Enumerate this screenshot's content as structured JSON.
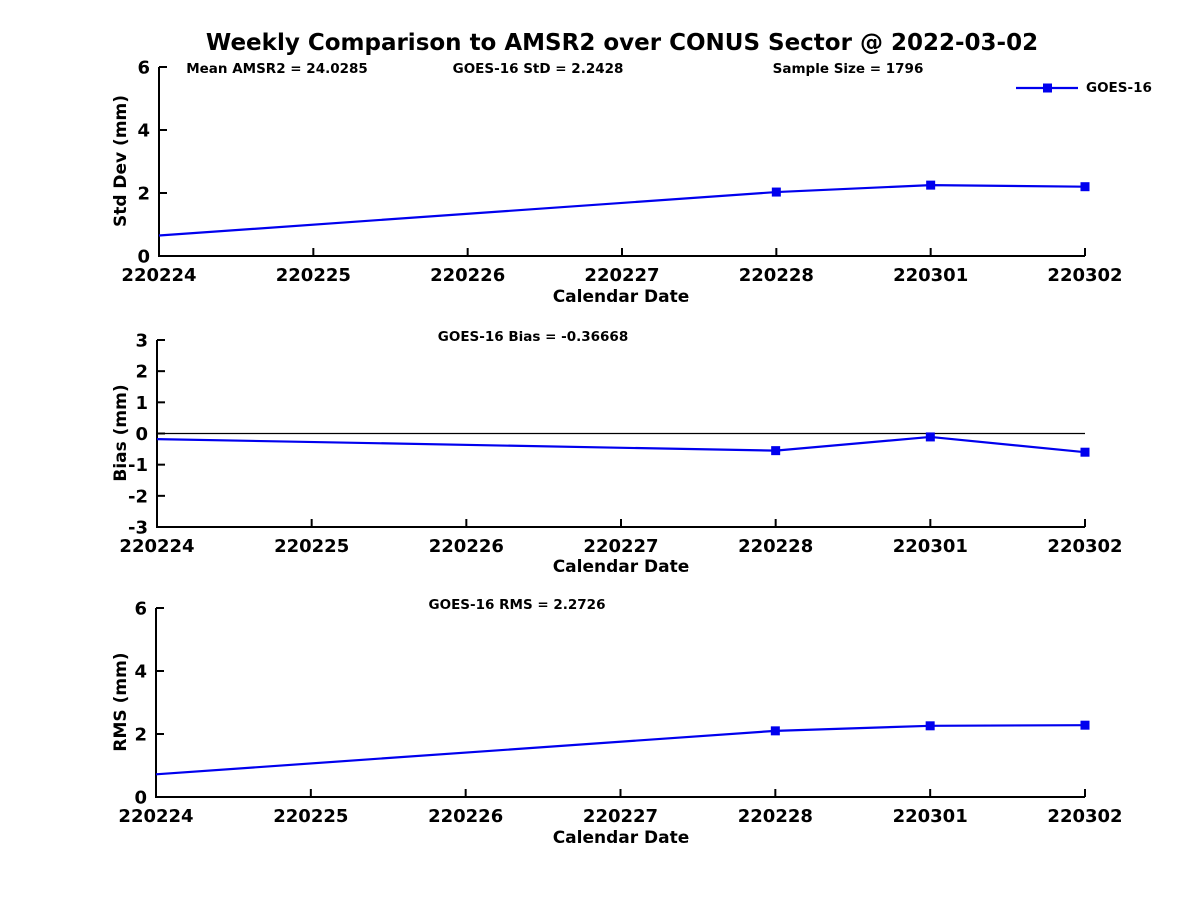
{
  "main_title": "Weekly Comparison to AMSR2 over CONUS Sector @ 2022-03-02",
  "annotations": {
    "mean_amsr2": "Mean AMSR2 = 24.0285",
    "goes16_std": "GOES-16 StD = 2.2428",
    "sample_size": "Sample Size = 1796"
  },
  "legend": {
    "label": "GOES-16",
    "color": "#0000EE",
    "marker": "square",
    "position": "top-right"
  },
  "colors": {
    "series_blue": "#0000EE",
    "axis_black": "#000000",
    "background": "#FFFFFF"
  },
  "chart_data": [
    {
      "type": "line",
      "title": "",
      "xlabel": "Calendar Date",
      "ylabel": "Std Dev (mm)",
      "categories": [
        "220224",
        "220225",
        "220226",
        "220227",
        "220228",
        "220301",
        "220302"
      ],
      "ylim": [
        0,
        6
      ],
      "yticks": [
        0,
        2,
        4,
        6
      ],
      "grid": false,
      "zero_line": false,
      "series": [
        {
          "name": "GOES-16",
          "color": "#0000EE",
          "values": [
            0.65,
            null,
            null,
            null,
            2.03,
            2.25,
            2.2
          ],
          "marker_indices": [
            4,
            5,
            6
          ]
        }
      ]
    },
    {
      "type": "line",
      "title": "GOES-16 Bias  = -0.36668",
      "xlabel": "Calendar Date",
      "ylabel": "Bias (mm)",
      "categories": [
        "220224",
        "220225",
        "220226",
        "220227",
        "220228",
        "220301",
        "220302"
      ],
      "ylim": [
        -3,
        3
      ],
      "yticks": [
        -3,
        -2,
        -1,
        0,
        1,
        2,
        3
      ],
      "grid": false,
      "zero_line": true,
      "series": [
        {
          "name": "GOES-16",
          "color": "#0000EE",
          "values": [
            -0.18,
            null,
            null,
            null,
            -0.55,
            -0.11,
            -0.6
          ],
          "marker_indices": [
            4,
            5,
            6
          ]
        }
      ]
    },
    {
      "type": "line",
      "title": "GOES-16 RMS = 2.2726",
      "xlabel": "Calendar Date",
      "ylabel": "RMS (mm)",
      "categories": [
        "220224",
        "220225",
        "220226",
        "220227",
        "220228",
        "220301",
        "220302"
      ],
      "ylim": [
        0,
        6
      ],
      "yticks": [
        0,
        2,
        4,
        6
      ],
      "grid": false,
      "zero_line": false,
      "series": [
        {
          "name": "GOES-16",
          "color": "#0000EE",
          "values": [
            0.72,
            null,
            null,
            null,
            2.1,
            2.26,
            2.28
          ],
          "marker_indices": [
            4,
            5,
            6
          ]
        }
      ]
    }
  ]
}
